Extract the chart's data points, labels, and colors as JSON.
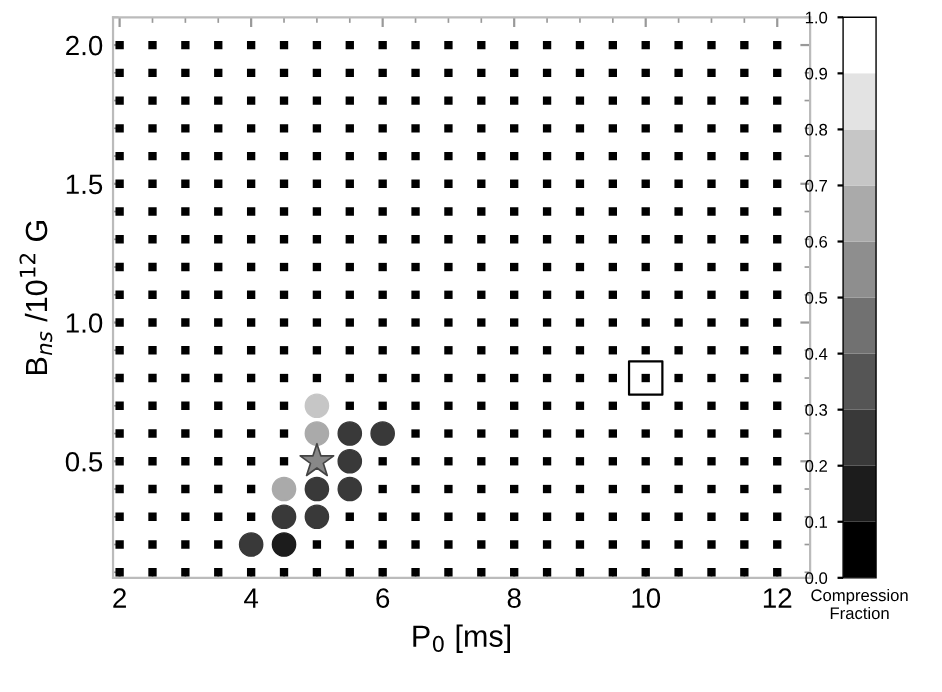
{
  "chart_data": {
    "type": "scatter",
    "xlabel": "P$_{0}$ [ms]",
    "ylabel": "B$_{ns}$ /10$^{12}$ G",
    "clabel": "Compression\nFraction",
    "xlim": [
      1.9,
      12.5
    ],
    "ylim": [
      0.08,
      2.1
    ],
    "xticks": [
      2,
      4,
      6,
      8,
      10,
      12
    ],
    "yticks": [
      0.5,
      {
        "value": 1,
        "label": "1.0"
      },
      1.5,
      {
        "value": 2,
        "label": "2.0"
      }
    ],
    "clim": [
      0,
      1
    ],
    "cticks": [
      {
        "value": 0,
        "label": "0.0"
      },
      0.1,
      0.2,
      0.3,
      0.4,
      0.5,
      0.6,
      0.7,
      0.8,
      0.9,
      {
        "value": 1,
        "label": "1.0"
      }
    ],
    "grid": false,
    "legend": false,
    "series": [
      {
        "marker": "square",
        "color": "#000000",
        "x": [
          2,
          2.5,
          3,
          3.5,
          4,
          4.5,
          5,
          5.5,
          6,
          6.5,
          7,
          7.5,
          8,
          8.5,
          9,
          9.5,
          10,
          10.5,
          11,
          11.5,
          12
        ],
        "values": [
          2.0,
          2.0,
          2.0,
          2.0,
          2.0,
          2.0,
          2.0,
          2.0,
          2.0,
          2.0,
          2.0,
          2.0,
          2.0,
          2.0,
          2.0,
          2.0,
          2.0,
          2.0,
          2.0,
          2.0,
          2.0
        ]
      },
      {
        "marker": "square",
        "color": "#000000",
        "x": [
          2,
          2.5,
          3,
          3.5,
          4,
          4.5,
          5,
          5.5,
          6,
          6.5,
          7,
          7.5,
          8,
          8.5,
          9,
          9.5,
          10,
          10.5,
          11,
          11.5,
          12
        ],
        "values": [
          1.9,
          1.9,
          1.9,
          1.9,
          1.9,
          1.9,
          1.9,
          1.9,
          1.9,
          1.9,
          1.9,
          1.9,
          1.9,
          1.9,
          1.9,
          1.9,
          1.9,
          1.9,
          1.9,
          1.9,
          1.9
        ]
      },
      {
        "marker": "square",
        "color": "#000000",
        "x": [
          2,
          2.5,
          3,
          3.5,
          4,
          4.5,
          5,
          5.5,
          6,
          6.5,
          7,
          7.5,
          8,
          8.5,
          9,
          9.5,
          10,
          10.5,
          11,
          11.5,
          12
        ],
        "values": [
          1.8,
          1.8,
          1.8,
          1.8,
          1.8,
          1.8,
          1.8,
          1.8,
          1.8,
          1.8,
          1.8,
          1.8,
          1.8,
          1.8,
          1.8,
          1.8,
          1.8,
          1.8,
          1.8,
          1.8,
          1.8
        ]
      },
      {
        "marker": "square",
        "color": "#000000",
        "x": [
          2,
          2.5,
          3,
          3.5,
          4,
          4.5,
          5,
          5.5,
          6,
          6.5,
          7,
          7.5,
          8,
          8.5,
          9,
          9.5,
          10,
          10.5,
          11,
          11.5,
          12
        ],
        "values": [
          1.7,
          1.7,
          1.7,
          1.7,
          1.7,
          1.7,
          1.7,
          1.7,
          1.7,
          1.7,
          1.7,
          1.7,
          1.7,
          1.7,
          1.7,
          1.7,
          1.7,
          1.7,
          1.7,
          1.7,
          1.7
        ]
      },
      {
        "marker": "square",
        "color": "#000000",
        "x": [
          2,
          2.5,
          3,
          3.5,
          4,
          4.5,
          5,
          5.5,
          6,
          6.5,
          7,
          7.5,
          8,
          8.5,
          9,
          9.5,
          10,
          10.5,
          11,
          11.5,
          12
        ],
        "values": [
          1.6,
          1.6,
          1.6,
          1.6,
          1.6,
          1.6,
          1.6,
          1.6,
          1.6,
          1.6,
          1.6,
          1.6,
          1.6,
          1.6,
          1.6,
          1.6,
          1.6,
          1.6,
          1.6,
          1.6,
          1.6
        ]
      },
      {
        "marker": "square",
        "color": "#000000",
        "x": [
          2,
          2.5,
          3,
          3.5,
          4,
          4.5,
          5,
          5.5,
          6,
          6.5,
          7,
          7.5,
          8,
          8.5,
          9,
          9.5,
          10,
          10.5,
          11,
          11.5,
          12
        ],
        "values": [
          1.5,
          1.5,
          1.5,
          1.5,
          1.5,
          1.5,
          1.5,
          1.5,
          1.5,
          1.5,
          1.5,
          1.5,
          1.5,
          1.5,
          1.5,
          1.5,
          1.5,
          1.5,
          1.5,
          1.5,
          1.5
        ]
      },
      {
        "marker": "square",
        "color": "#000000",
        "x": [
          2,
          2.5,
          3,
          3.5,
          4,
          4.5,
          5,
          5.5,
          6,
          6.5,
          7,
          7.5,
          8,
          8.5,
          9,
          9.5,
          10,
          10.5,
          11,
          11.5,
          12
        ],
        "values": [
          1.4,
          1.4,
          1.4,
          1.4,
          1.4,
          1.4,
          1.4,
          1.4,
          1.4,
          1.4,
          1.4,
          1.4,
          1.4,
          1.4,
          1.4,
          1.4,
          1.4,
          1.4,
          1.4,
          1.4,
          1.4
        ]
      },
      {
        "marker": "square",
        "color": "#000000",
        "x": [
          2,
          2.5,
          3,
          3.5,
          4,
          4.5,
          5,
          5.5,
          6,
          6.5,
          7,
          7.5,
          8,
          8.5,
          9,
          9.5,
          10,
          10.5,
          11,
          11.5,
          12
        ],
        "values": [
          1.3,
          1.3,
          1.3,
          1.3,
          1.3,
          1.3,
          1.3,
          1.3,
          1.3,
          1.3,
          1.3,
          1.3,
          1.3,
          1.3,
          1.3,
          1.3,
          1.3,
          1.3,
          1.3,
          1.3,
          1.3
        ]
      },
      {
        "marker": "square",
        "color": "#000000",
        "x": [
          2,
          2.5,
          3,
          3.5,
          4,
          4.5,
          5,
          5.5,
          6,
          6.5,
          7,
          7.5,
          8,
          8.5,
          9,
          9.5,
          10,
          10.5,
          11,
          11.5,
          12
        ],
        "values": [
          1.2,
          1.2,
          1.2,
          1.2,
          1.2,
          1.2,
          1.2,
          1.2,
          1.2,
          1.2,
          1.2,
          1.2,
          1.2,
          1.2,
          1.2,
          1.2,
          1.2,
          1.2,
          1.2,
          1.2,
          1.2
        ]
      },
      {
        "marker": "square",
        "color": "#000000",
        "x": [
          2,
          2.5,
          3,
          3.5,
          4,
          4.5,
          5,
          5.5,
          6,
          6.5,
          7,
          7.5,
          8,
          8.5,
          9,
          9.5,
          10,
          10.5,
          11,
          11.5,
          12
        ],
        "values": [
          1.1,
          1.1,
          1.1,
          1.1,
          1.1,
          1.1,
          1.1,
          1.1,
          1.1,
          1.1,
          1.1,
          1.1,
          1.1,
          1.1,
          1.1,
          1.1,
          1.1,
          1.1,
          1.1,
          1.1,
          1.1
        ]
      },
      {
        "marker": "square",
        "color": "#000000",
        "x": [
          2,
          2.5,
          3,
          3.5,
          4,
          4.5,
          5,
          5.5,
          6,
          6.5,
          7,
          7.5,
          8,
          8.5,
          9,
          9.5,
          10,
          10.5,
          11,
          11.5,
          12
        ],
        "values": [
          1.0,
          1.0,
          1.0,
          1.0,
          1.0,
          1.0,
          1.0,
          1.0,
          1.0,
          1.0,
          1.0,
          1.0,
          1.0,
          1.0,
          1.0,
          1.0,
          1.0,
          1.0,
          1.0,
          1.0,
          1.0
        ]
      },
      {
        "marker": "square",
        "color": "#000000",
        "x": [
          2,
          2.5,
          3,
          3.5,
          4,
          4.5,
          5,
          5.5,
          6,
          6.5,
          7,
          7.5,
          8,
          8.5,
          9,
          9.5,
          10,
          10.5,
          11,
          11.5,
          12
        ],
        "values": [
          0.9,
          0.9,
          0.9,
          0.9,
          0.9,
          0.9,
          0.9,
          0.9,
          0.9,
          0.9,
          0.9,
          0.9,
          0.9,
          0.9,
          0.9,
          0.9,
          0.9,
          0.9,
          0.9,
          0.9,
          0.9
        ]
      },
      {
        "marker": "square",
        "color": "#000000",
        "x": [
          2,
          2.5,
          3,
          3.5,
          4,
          4.5,
          5,
          5.5,
          6,
          6.5,
          7,
          7.5,
          8,
          8.5,
          9,
          9.5,
          10,
          10.5,
          11,
          11.5,
          12
        ],
        "values": [
          0.8,
          0.8,
          0.8,
          0.8,
          0.8,
          0.8,
          0.8,
          0.8,
          0.8,
          0.8,
          0.8,
          0.8,
          0.8,
          0.8,
          0.8,
          0.8,
          0.8,
          0.8,
          0.8,
          0.8,
          0.8
        ]
      },
      {
        "marker": "square",
        "color": "#000000",
        "x": [
          2,
          2.5,
          3,
          3.5,
          4,
          4.5,
          5.5,
          6,
          6.5,
          7,
          7.5,
          8,
          8.5,
          9,
          9.5,
          10,
          10.5,
          11,
          11.5,
          12
        ],
        "values": [
          0.7,
          0.7,
          0.7,
          0.7,
          0.7,
          0.7,
          0.7,
          0.7,
          0.7,
          0.7,
          0.7,
          0.7,
          0.7,
          0.7,
          0.7,
          0.7,
          0.7,
          0.7,
          0.7,
          0.7
        ]
      },
      {
        "marker": "square",
        "color": "#000000",
        "x": [
          2,
          2.5,
          3,
          3.5,
          4,
          4.5,
          6.5,
          7,
          7.5,
          8,
          8.5,
          9,
          9.5,
          10,
          10.5,
          11,
          11.5,
          12
        ],
        "values": [
          0.6,
          0.6,
          0.6,
          0.6,
          0.6,
          0.6,
          0.6,
          0.6,
          0.6,
          0.6,
          0.6,
          0.6,
          0.6,
          0.6,
          0.6,
          0.6,
          0.6,
          0.6
        ]
      },
      {
        "marker": "square",
        "color": "#000000",
        "x": [
          2,
          2.5,
          3,
          3.5,
          4,
          4.5,
          6,
          6.5,
          7,
          7.5,
          8,
          8.5,
          9,
          9.5,
          10,
          10.5,
          11,
          11.5,
          12
        ],
        "values": [
          0.5,
          0.5,
          0.5,
          0.5,
          0.5,
          0.5,
          0.5,
          0.5,
          0.5,
          0.5,
          0.5,
          0.5,
          0.5,
          0.5,
          0.5,
          0.5,
          0.5,
          0.5,
          0.5
        ]
      },
      {
        "marker": "square",
        "color": "#000000",
        "x": [
          2,
          2.5,
          3,
          3.5,
          4,
          6,
          6.5,
          7,
          7.5,
          8,
          8.5,
          9,
          9.5,
          10,
          10.5,
          11,
          11.5,
          12
        ],
        "values": [
          0.4,
          0.4,
          0.4,
          0.4,
          0.4,
          0.4,
          0.4,
          0.4,
          0.4,
          0.4,
          0.4,
          0.4,
          0.4,
          0.4,
          0.4,
          0.4,
          0.4,
          0.4
        ]
      },
      {
        "marker": "square",
        "color": "#000000",
        "x": [
          2,
          2.5,
          3,
          3.5,
          4,
          5.5,
          6,
          6.5,
          7,
          7.5,
          8,
          8.5,
          9,
          9.5,
          10,
          10.5,
          11,
          11.5,
          12
        ],
        "values": [
          0.3,
          0.3,
          0.3,
          0.3,
          0.3,
          0.3,
          0.3,
          0.3,
          0.3,
          0.3,
          0.3,
          0.3,
          0.3,
          0.3,
          0.3,
          0.3,
          0.3,
          0.3,
          0.3
        ]
      },
      {
        "marker": "square",
        "color": "#000000",
        "x": [
          2,
          2.5,
          3,
          3.5,
          5,
          5.5,
          6,
          6.5,
          7,
          7.5,
          8,
          8.5,
          9,
          9.5,
          10,
          10.5,
          11,
          11.5,
          12
        ],
        "values": [
          0.2,
          0.2,
          0.2,
          0.2,
          0.2,
          0.2,
          0.2,
          0.2,
          0.2,
          0.2,
          0.2,
          0.2,
          0.2,
          0.2,
          0.2,
          0.2,
          0.2,
          0.2,
          0.2
        ]
      },
      {
        "marker": "square",
        "color": "#000000",
        "x": [
          2,
          2.5,
          3,
          3.5,
          4,
          4.5,
          5,
          5.5,
          6,
          6.5,
          7,
          7.5,
          8,
          8.5,
          9,
          9.5,
          10,
          10.5,
          11,
          11.5,
          12
        ],
        "values": [
          0.1,
          0.1,
          0.1,
          0.1,
          0.1,
          0.1,
          0.1,
          0.1,
          0.1,
          0.1,
          0.1,
          0.1,
          0.1,
          0.1,
          0.1,
          0.1,
          0.1,
          0.1,
          0.1,
          0.1,
          0.1
        ]
      },
      {
        "marker": "circle",
        "x": [
          5,
          5,
          5.5,
          6,
          5.5,
          4.5,
          5,
          5.5,
          4.5,
          5,
          4,
          4.5
        ],
        "values": [
          0.7,
          0.6,
          0.6,
          0.6,
          0.5,
          0.4,
          0.4,
          0.4,
          0.3,
          0.3,
          0.2,
          0.2
        ],
        "cvalues": [
          0.75,
          0.65,
          0.25,
          0.25,
          0.25,
          0.65,
          0.25,
          0.25,
          0.25,
          0.25,
          0.25,
          0.15
        ],
        "colors": [
          "#c6c6c6",
          "#aaaaaa",
          "#383838",
          "#383838",
          "#383838",
          "#aaaaaa",
          "#383838",
          "#383838",
          "#383838",
          "#383838",
          "#383838",
          "#1c1c1c"
        ]
      },
      {
        "marker": "star",
        "color": "#888888",
        "x": [
          5
        ],
        "values": [
          0.5
        ]
      },
      {
        "marker": "square",
        "x": [
          10
        ],
        "values": [
          0.8
        ]
      }
    ]
  }
}
